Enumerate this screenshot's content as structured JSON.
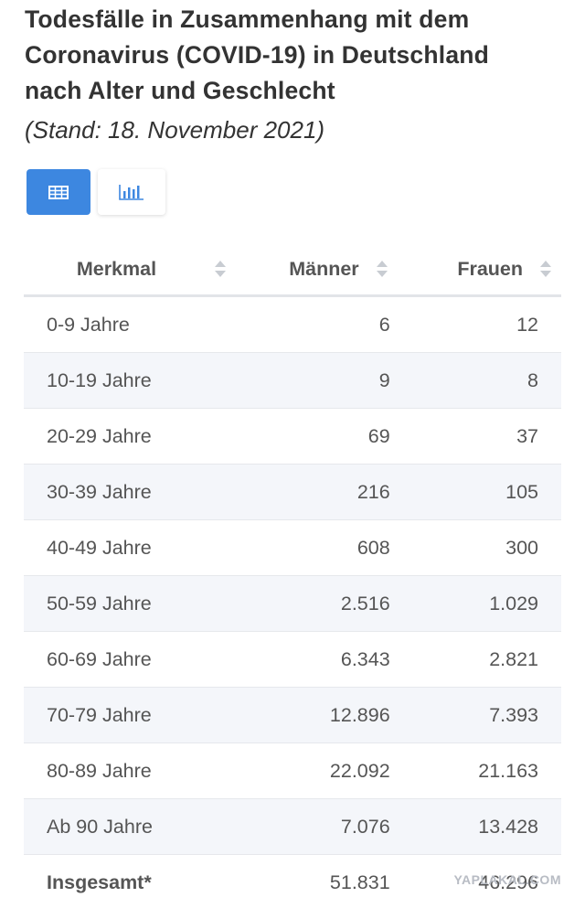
{
  "header": {
    "title_lines": [
      "Todesfälle in Zusammenhang mit dem",
      "Coronavirus (COVID-19) in Deutschland",
      "nach Alter und Geschlecht"
    ],
    "subtitle": "(Stand: 18. November 2021)"
  },
  "table": {
    "columns": [
      "Merkmal",
      "Männer",
      "Frauen"
    ],
    "rows": [
      [
        "0-9 Jahre",
        "6",
        "12"
      ],
      [
        "10-19 Jahre",
        "9",
        "8"
      ],
      [
        "20-29 Jahre",
        "69",
        "37"
      ],
      [
        "30-39 Jahre",
        "216",
        "105"
      ],
      [
        "40-49 Jahre",
        "608",
        "300"
      ],
      [
        "50-59 Jahre",
        "2.516",
        "1.029"
      ],
      [
        "60-69 Jahre",
        "6.343",
        "2.821"
      ],
      [
        "70-79 Jahre",
        "12.896",
        "7.393"
      ],
      [
        "80-89 Jahre",
        "22.092",
        "21.163"
      ],
      [
        "Ab 90 Jahre",
        "7.076",
        "13.428"
      ]
    ],
    "total": [
      "Insgesamt*",
      "51.831",
      "46.296"
    ]
  },
  "watermark": "YAPLAKAL.COM"
}
